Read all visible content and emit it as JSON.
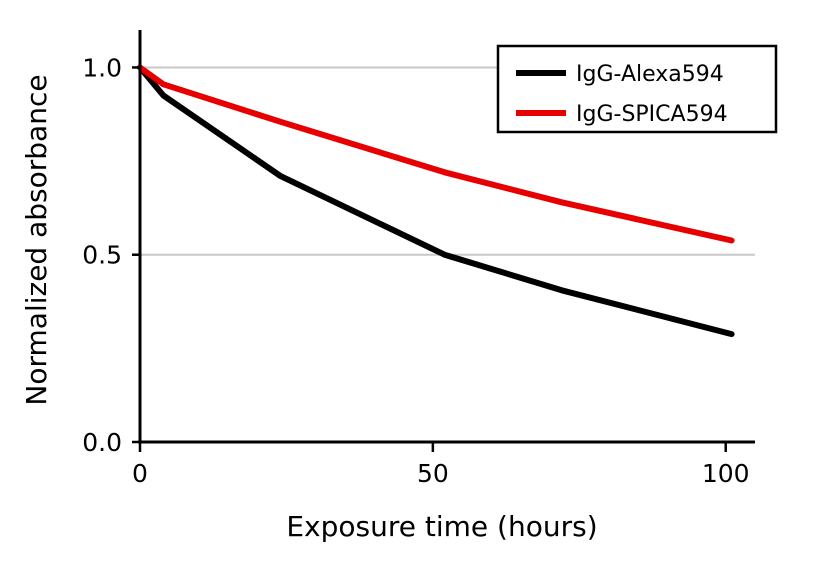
{
  "chart_data": {
    "type": "line",
    "title": "",
    "xlabel": "Exposure time (hours)",
    "ylabel": "Normalized absorbance",
    "xlim": [
      0,
      105
    ],
    "ylim": [
      0,
      1.1
    ],
    "x_ticks": [
      "0",
      "50",
      "100"
    ],
    "x_tick_values": [
      0,
      50,
      100
    ],
    "y_ticks": [
      "0.0",
      "0.5",
      "1.0"
    ],
    "y_tick_values": [
      0,
      0.5,
      1.0
    ],
    "grid": "horizontal",
    "legend_position": "top-right",
    "series": [
      {
        "name": "IgG-Alexa594",
        "color": "#000000",
        "x": [
          0,
          4,
          24,
          52,
          72,
          101
        ],
        "y": [
          1.0,
          0.925,
          0.71,
          0.5,
          0.405,
          0.288
        ]
      },
      {
        "name": "IgG-SPICA594",
        "color": "#e60000",
        "x": [
          0,
          4,
          24,
          52,
          72,
          101
        ],
        "y": [
          1.0,
          0.955,
          0.855,
          0.72,
          0.64,
          0.538
        ]
      }
    ]
  }
}
